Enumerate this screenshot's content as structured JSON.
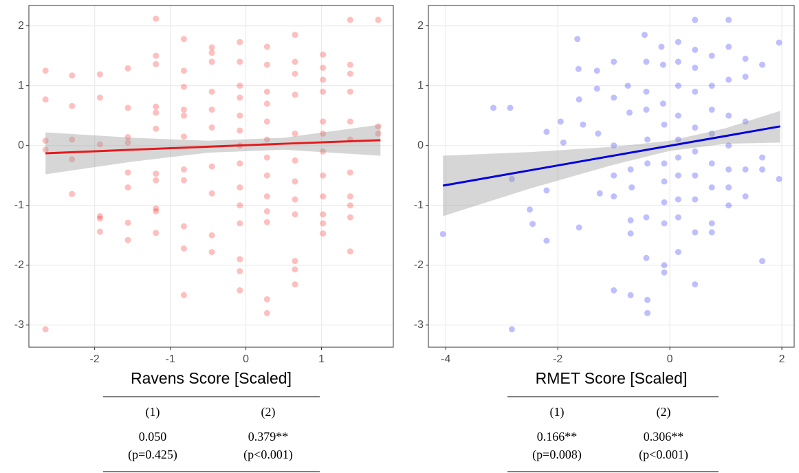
{
  "chart_data": [
    {
      "type": "scatter",
      "xlabel": "Ravens Score [Scaled]",
      "color": "#ff0000",
      "alpha": 0.25,
      "line_color": "#e41a1c",
      "band_color": "#999999",
      "grid": true,
      "xlim": [
        -2.87,
        1.95
      ],
      "ylim": [
        -3.37,
        2.34
      ],
      "xticks": [
        -2,
        -1,
        0,
        1
      ],
      "yticks": [
        -3,
        -2,
        -1,
        0,
        1,
        2
      ],
      "x": [
        -2.65,
        -2.65,
        -2.65,
        -2.65,
        -2.65,
        -2.3,
        -2.3,
        -2.3,
        -2.3,
        -2.3,
        -1.93,
        -1.93,
        -1.93,
        -1.93,
        -1.93,
        -1.93,
        -1.56,
        -1.56,
        -1.56,
        -1.56,
        -1.56,
        -1.56,
        -1.56,
        -1.56,
        -1.19,
        -1.19,
        -1.19,
        -1.19,
        -1.19,
        -1.19,
        -1.19,
        -1.19,
        -1.19,
        -1.19,
        -1.19,
        -0.82,
        -0.82,
        -0.82,
        -0.82,
        -0.82,
        -0.82,
        -0.82,
        -0.82,
        -0.82,
        -0.82,
        -0.82,
        -0.45,
        -0.45,
        -0.45,
        -0.45,
        -0.45,
        -0.45,
        -0.45,
        -0.45,
        -0.45,
        -0.45,
        -0.08,
        -0.08,
        -0.08,
        -0.08,
        -0.08,
        -0.08,
        -0.08,
        -0.08,
        -0.08,
        -0.08,
        -0.08,
        -0.08,
        -0.08,
        -0.08,
        0.28,
        0.28,
        0.28,
        0.28,
        0.28,
        0.28,
        0.28,
        0.28,
        0.28,
        0.28,
        0.28,
        0.28,
        0.28,
        0.65,
        0.65,
        0.65,
        0.65,
        0.65,
        0.65,
        0.65,
        0.65,
        0.65,
        0.65,
        0.65,
        0.65,
        1.02,
        1.02,
        1.02,
        1.02,
        1.02,
        1.02,
        1.02,
        1.02,
        1.02,
        1.02,
        1.02,
        1.02,
        1.38,
        1.38,
        1.38,
        1.38,
        1.38,
        1.38,
        1.38,
        1.38,
        1.38,
        1.38,
        1.38,
        1.75,
        1.75,
        1.75
      ],
      "y": [
        1.25,
        0.77,
        0.08,
        -0.07,
        -3.07,
        1.17,
        0.66,
        0.1,
        -0.23,
        -0.81,
        1.19,
        0.8,
        0.02,
        -1.18,
        -1.22,
        -1.44,
        1.29,
        0.63,
        0.14,
        0.05,
        -0.45,
        -0.7,
        -1.29,
        -1.58,
        2.12,
        1.5,
        1.36,
        0.65,
        0.55,
        0.28,
        -0.47,
        -0.58,
        -1.05,
        -1.1,
        -1.46,
        1.78,
        1.25,
        0.98,
        0.6,
        0.5,
        0.15,
        -0.4,
        -0.58,
        -1.35,
        -1.72,
        -2.5,
        1.64,
        1.55,
        1.4,
        0.9,
        0.6,
        0.3,
        -0.35,
        -0.8,
        -1.5,
        -1.78,
        1.73,
        1.4,
        1.0,
        0.8,
        0.5,
        0.25,
        0.0,
        -0.3,
        -0.7,
        -1.0,
        -1.3,
        -1.9,
        -2.1,
        -2.42,
        1.65,
        1.35,
        0.9,
        0.7,
        0.4,
        0.1,
        -0.2,
        -0.5,
        -0.85,
        -1.1,
        -1.28,
        -2.57,
        -2.8,
        1.85,
        1.4,
        1.2,
        0.85,
        0.2,
        -0.25,
        -0.6,
        -0.9,
        -1.15,
        -1.93,
        -2.07,
        -2.32,
        1.52,
        1.3,
        1.1,
        0.9,
        0.4,
        0.2,
        -0.1,
        -0.5,
        -0.85,
        -1.15,
        -1.3,
        -1.47,
        2.1,
        1.35,
        1.2,
        0.9,
        0.4,
        0.1,
        -0.45,
        -0.85,
        -1.0,
        -1.2,
        -1.77,
        2.1,
        0.32,
        0.2
      ],
      "fit": {
        "x": [
          -2.65,
          -1.5,
          -0.5,
          0.5,
          1.78
        ],
        "y": [
          -0.13,
          -0.07,
          -0.02,
          0.03,
          0.09
        ],
        "lower": [
          -0.48,
          -0.27,
          -0.12,
          -0.07,
          -0.17
        ],
        "upper": [
          0.22,
          0.13,
          0.08,
          0.13,
          0.35
        ]
      },
      "table": {
        "columns": [
          "(1)",
          "(2)"
        ],
        "rows": [
          [
            "0.050",
            "0.379**"
          ],
          [
            "(p=0.425)",
            "(p<0.001)"
          ]
        ]
      }
    },
    {
      "type": "scatter",
      "xlabel": "RMET Score [Scaled]",
      "color": "#0000ff",
      "alpha": 0.25,
      "line_color": "#0000dd",
      "band_color": "#999999",
      "grid": true,
      "xlim": [
        -4.31,
        2.22
      ],
      "ylim": [
        -3.37,
        2.34
      ],
      "xticks": [
        -4,
        -2,
        0,
        2
      ],
      "yticks": [
        -3,
        -2,
        -1,
        0,
        1,
        2
      ],
      "x": [
        -4.05,
        -3.15,
        -2.85,
        -2.82,
        -2.82,
        -2.5,
        -2.45,
        -2.2,
        -2.2,
        -2.2,
        -1.95,
        -1.9,
        -1.65,
        -1.63,
        -1.62,
        -1.62,
        -1.55,
        -1.3,
        -1.3,
        -1.28,
        -1.25,
        -1.0,
        -1.0,
        -1.0,
        -1.0,
        -1.0,
        -1.0,
        -0.75,
        -0.72,
        -0.7,
        -0.68,
        -0.7,
        -0.7,
        -0.7,
        -0.45,
        -0.42,
        -0.42,
        -0.42,
        -0.4,
        -0.4,
        -0.42,
        -0.42,
        -0.4,
        -0.4,
        -0.15,
        -0.12,
        -0.12,
        -0.1,
        -0.1,
        -0.1,
        -0.1,
        -0.1,
        -0.1,
        -0.1,
        0.15,
        0.15,
        0.15,
        0.15,
        0.15,
        0.15,
        0.15,
        0.15,
        0.15,
        0.15,
        0.45,
        0.45,
        0.45,
        0.45,
        0.45,
        0.45,
        0.45,
        0.45,
        0.45,
        0.45,
        0.75,
        0.75,
        0.75,
        0.75,
        0.75,
        0.75,
        0.75,
        0.75,
        1.05,
        1.05,
        1.05,
        1.05,
        1.05,
        1.05,
        1.05,
        1.05,
        1.35,
        1.35,
        1.35,
        1.35,
        1.35,
        1.65,
        1.65,
        1.65,
        1.65,
        1.95,
        1.95
      ],
      "y": [
        -1.48,
        0.63,
        0.63,
        -0.56,
        -3.07,
        -1.07,
        -1.31,
        -0.75,
        0.23,
        -1.59,
        0.4,
        0.05,
        1.78,
        1.28,
        0.77,
        -1.37,
        0.35,
        1.25,
        0.95,
        0.2,
        -0.8,
        1.4,
        0.8,
        0.0,
        -0.5,
        -0.85,
        -2.42,
        1.0,
        0.55,
        -0.4,
        -0.7,
        -1.25,
        -1.47,
        -2.5,
        1.85,
        1.4,
        0.9,
        0.6,
        0.1,
        -0.3,
        -1.2,
        -1.88,
        -2.58,
        -2.8,
        1.65,
        1.35,
        0.7,
        0.35,
        -0.3,
        -0.6,
        -0.95,
        -1.3,
        -2.0,
        -2.12,
        1.73,
        1.4,
        1.0,
        0.5,
        0.1,
        -0.2,
        -0.5,
        -0.9,
        -1.2,
        -1.78,
        2.1,
        1.6,
        1.3,
        0.9,
        0.3,
        -0.1,
        -0.5,
        -0.9,
        -1.45,
        -2.32,
        1.5,
        1.0,
        0.6,
        0.2,
        -0.3,
        -0.7,
        -1.3,
        -1.45,
        2.1,
        1.65,
        1.1,
        0.5,
        0.0,
        -0.4,
        -0.7,
        -1.0,
        1.45,
        1.15,
        0.4,
        -0.4,
        -0.85,
        1.35,
        -0.2,
        -0.4,
        -1.93,
        1.72,
        -0.56
      ],
      "fit": {
        "x": [
          -4.05,
          -2.5,
          -1,
          0,
          1,
          1.97
        ],
        "y": [
          -0.67,
          -0.415,
          -0.168,
          -0.004,
          0.16,
          0.32
        ],
        "lower": [
          -1.18,
          -0.72,
          -0.32,
          -0.09,
          0.03,
          0.05
        ],
        "upper": [
          -0.17,
          -0.11,
          -0.02,
          0.08,
          0.29,
          0.58
        ]
      },
      "table": {
        "columns": [
          "(1)",
          "(2)"
        ],
        "rows": [
          [
            "0.166**",
            "0.306**"
          ],
          [
            "(p=0.008)",
            "(p<0.001)"
          ]
        ]
      }
    }
  ]
}
